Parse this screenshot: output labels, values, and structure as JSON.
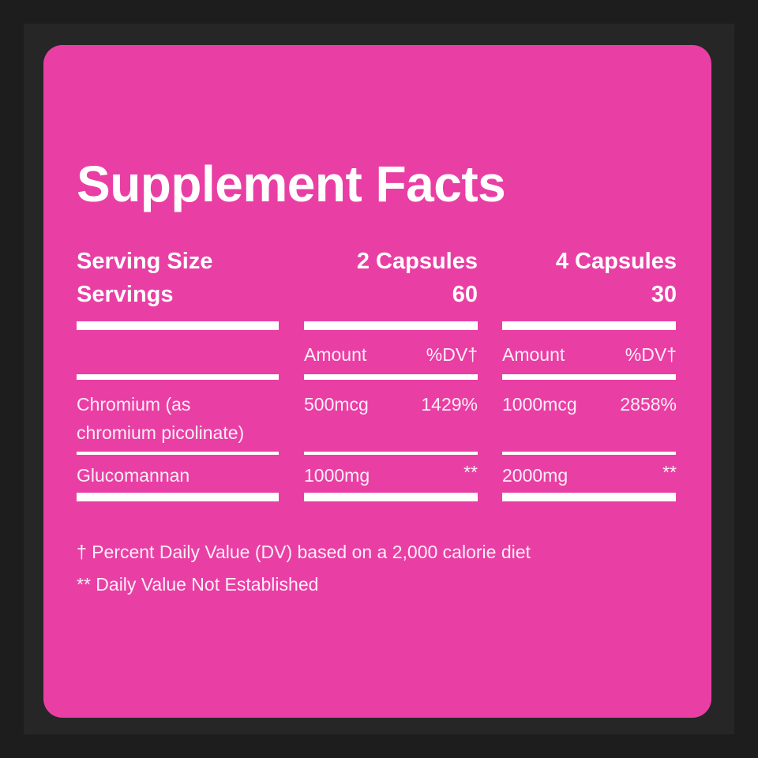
{
  "title": "Supplement Facts",
  "labels": {
    "serving_size": "Serving Size",
    "servings": "Servings"
  },
  "columns": [
    {
      "serving_size": "2 Capsules",
      "servings": "60",
      "amount_header": "Amount",
      "dv_header": "%DV†"
    },
    {
      "serving_size": "4 Capsules",
      "servings": "30",
      "amount_header": "Amount",
      "dv_header": "%DV†"
    }
  ],
  "rows": [
    {
      "name_line1": "Chromium (as",
      "name_line2": "chromium picolinate)",
      "values": [
        {
          "amount": "500mcg",
          "dv": "1429%"
        },
        {
          "amount": "1000mcg",
          "dv": "2858%"
        }
      ]
    },
    {
      "name_line1": "Glucomannan",
      "values": [
        {
          "amount": "1000mg",
          "dv": "**"
        },
        {
          "amount": "2000mg",
          "dv": "**"
        }
      ]
    }
  ],
  "footnotes": [
    "† Percent Daily Value (DV) based on a 2,000 calorie diet",
    "** Daily Value Not Established"
  ],
  "colors": {
    "card": "#e93fa4",
    "background": "#1d1d1d",
    "text": "#ffffff"
  }
}
